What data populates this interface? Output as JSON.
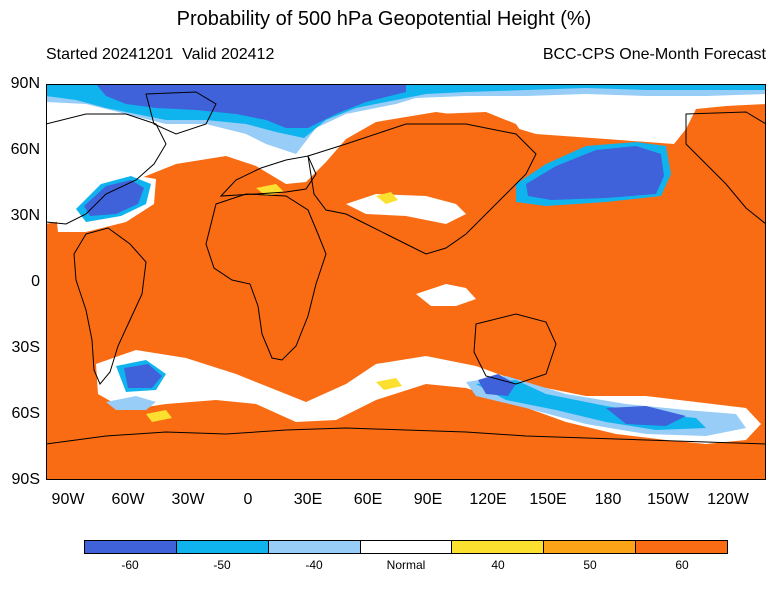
{
  "title": "Probability of 500 hPa Geopotential Height (%)",
  "subtitle_left": "Started 20241201  Valid 202412",
  "subtitle_right": "BCC-CPS One-Month Forecast",
  "lat_labels": [
    "90N",
    "60N",
    "30N",
    "0",
    "30S",
    "60S",
    "90S"
  ],
  "lon_labels": [
    "90W",
    "60W",
    "30W",
    "0",
    "30E",
    "60E",
    "90E",
    "120E",
    "150E",
    "180",
    "150W",
    "120W"
  ],
  "colorbar": {
    "labels": [
      "-60",
      "-50",
      "-40",
      "Normal",
      "40",
      "50",
      "60"
    ],
    "colors": [
      "#3f62db",
      "#0fb4ef",
      "#97cdf7",
      "#ffffff",
      "#fbe030",
      "#fca417",
      "#f96c14"
    ]
  },
  "colors": {
    "below_strong": "#3f62db",
    "below_mid": "#0fb4ef",
    "below_weak": "#97cdf7",
    "normal": "#ffffff",
    "above_weak": "#fbe030",
    "above_mid": "#fca417",
    "above_strong": "#f96c14"
  }
}
